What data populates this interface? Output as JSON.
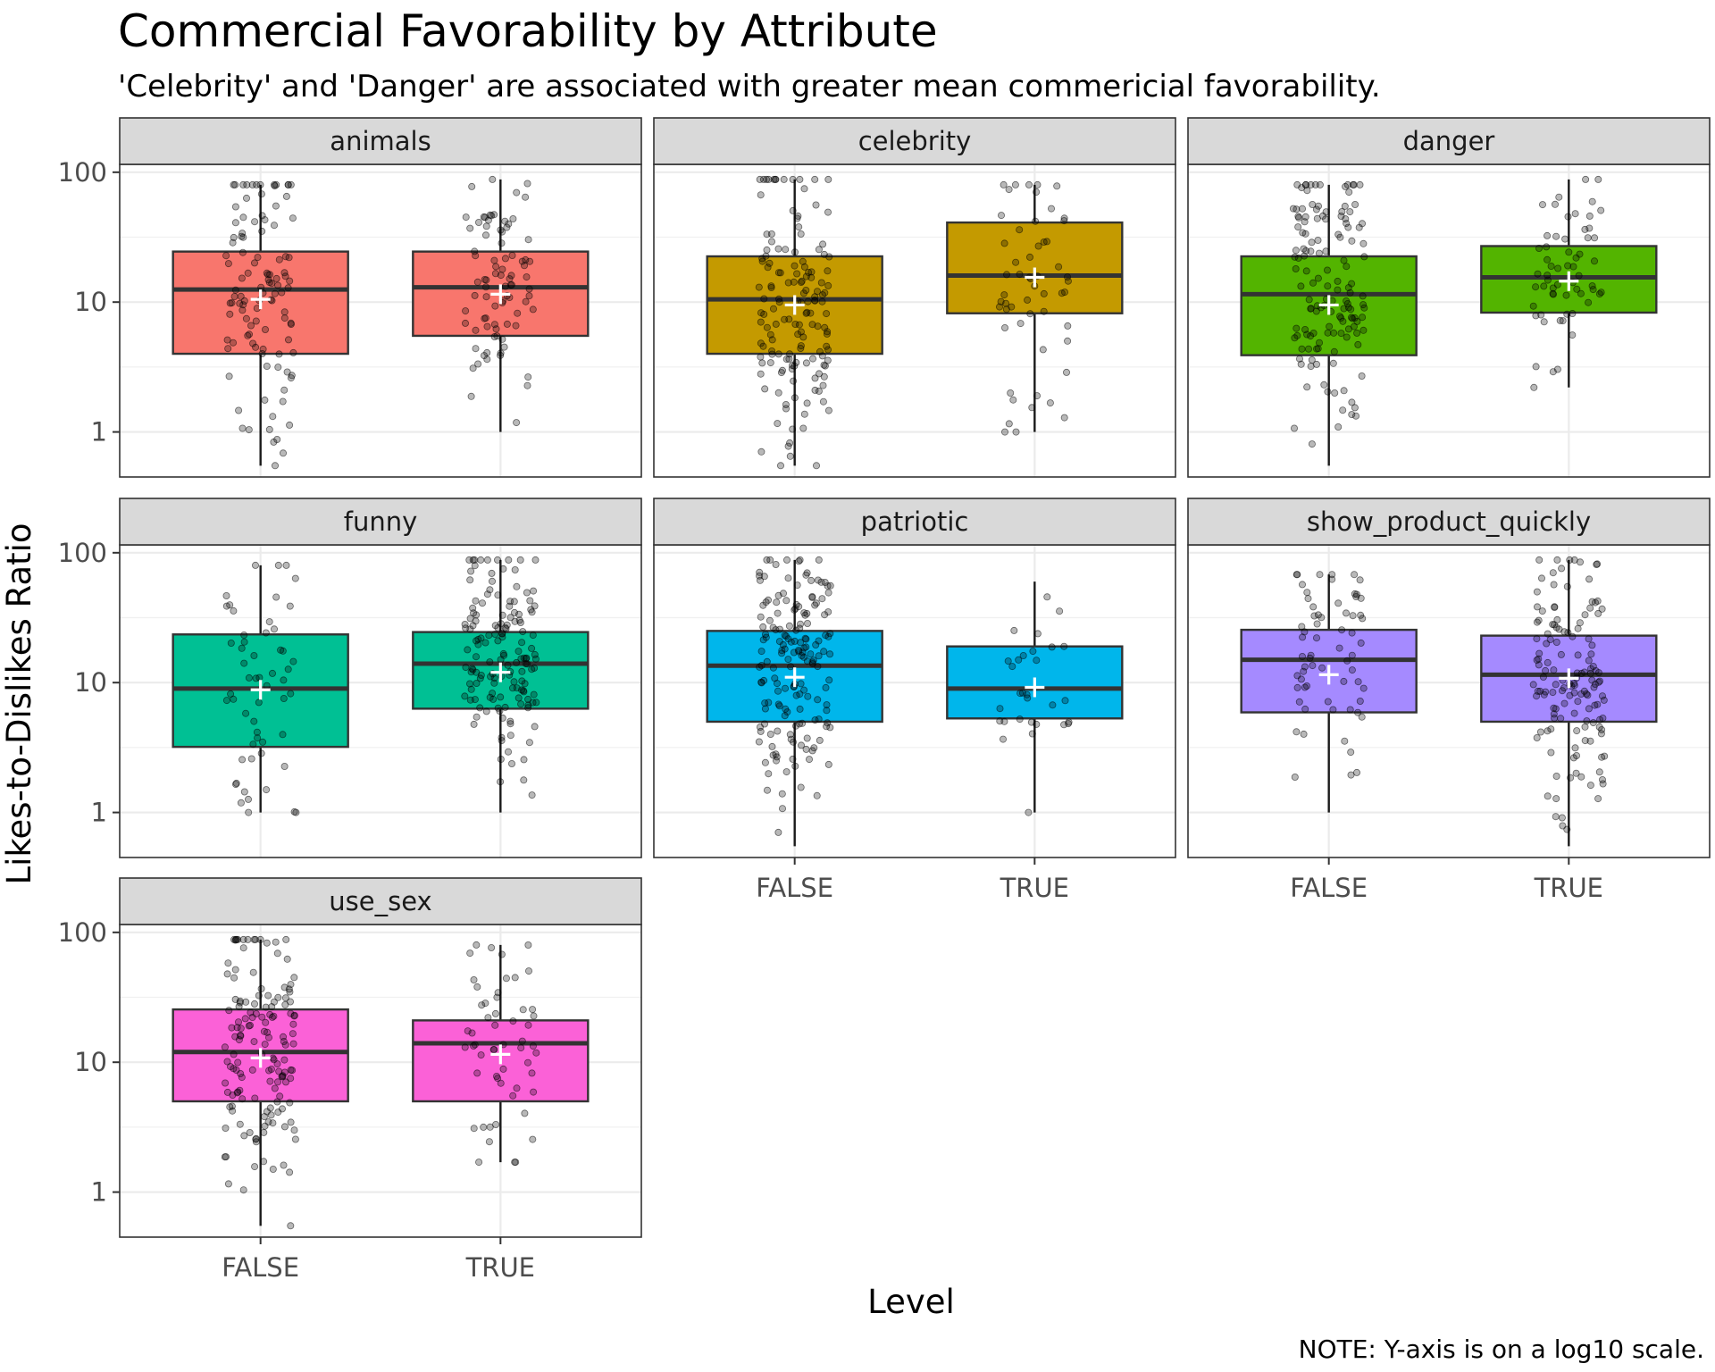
{
  "chart_data": {
    "type": "boxplot",
    "title": "Commercial Favorability by Attribute",
    "subtitle": "'Celebrity' and 'Danger' are associated with greater mean commericial favorability.",
    "xlabel": "Level",
    "ylabel": "Likes-to-Dislikes Ratio",
    "note": "NOTE: Y-axis is on a log10 scale.",
    "y_scale": "log10",
    "ylim": [
      0.45,
      115
    ],
    "y_ticks": [
      1,
      10,
      100
    ],
    "y_tick_labels": [
      "1",
      "10",
      "100"
    ],
    "categories": [
      "FALSE",
      "TRUE"
    ],
    "grid": true,
    "legend": "none",
    "facets": [
      {
        "name": "animals",
        "color": "#F8766D",
        "boxes": [
          {
            "level": "FALSE",
            "q1": 4.0,
            "median": 12.5,
            "q3": 24.5,
            "whisker_low": 0.55,
            "whisker_high": 80,
            "mean": 10.5,
            "n_points": 110
          },
          {
            "level": "TRUE",
            "q1": 5.5,
            "median": 13.0,
            "q3": 24.5,
            "whisker_low": 1.0,
            "whisker_high": 88,
            "mean": 11.5,
            "n_points": 85
          }
        ]
      },
      {
        "name": "celebrity",
        "color": "#C49A00",
        "boxes": [
          {
            "level": "FALSE",
            "q1": 4.0,
            "median": 10.5,
            "q3": 22.5,
            "whisker_low": 0.55,
            "whisker_high": 88,
            "mean": 9.5,
            "n_points": 150
          },
          {
            "level": "TRUE",
            "q1": 8.2,
            "median": 16.0,
            "q3": 41.0,
            "whisker_low": 1.0,
            "whisker_high": 80,
            "mean": 15.5,
            "n_points": 55
          }
        ]
      },
      {
        "name": "danger",
        "color": "#53B400",
        "boxes": [
          {
            "level": "FALSE",
            "q1": 3.9,
            "median": 11.5,
            "q3": 22.5,
            "whisker_low": 0.55,
            "whisker_high": 80,
            "mean": 9.5,
            "n_points": 140
          },
          {
            "level": "TRUE",
            "q1": 8.3,
            "median": 15.5,
            "q3": 27.0,
            "whisker_low": 2.2,
            "whisker_high": 88,
            "mean": 14.5,
            "n_points": 60
          }
        ]
      },
      {
        "name": "funny",
        "color": "#00C094",
        "boxes": [
          {
            "level": "FALSE",
            "q1": 3.2,
            "median": 9.0,
            "q3": 23.5,
            "whisker_low": 1.0,
            "whisker_high": 80,
            "mean": 8.8,
            "n_points": 55
          },
          {
            "level": "TRUE",
            "q1": 6.3,
            "median": 14.0,
            "q3": 24.5,
            "whisker_low": 1.0,
            "whisker_high": 88,
            "mean": 12.0,
            "n_points": 150
          }
        ]
      },
      {
        "name": "patriotic",
        "color": "#00B6EB",
        "boxes": [
          {
            "level": "FALSE",
            "q1": 5.0,
            "median": 13.5,
            "q3": 25.0,
            "whisker_low": 0.55,
            "whisker_high": 88,
            "mean": 11.0,
            "n_points": 170
          },
          {
            "level": "TRUE",
            "q1": 5.3,
            "median": 9.0,
            "q3": 19.0,
            "whisker_low": 1.0,
            "whisker_high": 60,
            "mean": 9.2,
            "n_points": 30
          }
        ]
      },
      {
        "name": "show_product_quickly",
        "color": "#A58AFF",
        "boxes": [
          {
            "level": "FALSE",
            "q1": 5.9,
            "median": 15.0,
            "q3": 25.5,
            "whisker_low": 1.0,
            "whisker_high": 68,
            "mean": 11.5,
            "n_points": 65
          },
          {
            "level": "TRUE",
            "q1": 5.0,
            "median": 11.5,
            "q3": 23.0,
            "whisker_low": 0.55,
            "whisker_high": 88,
            "mean": 10.8,
            "n_points": 140
          }
        ]
      },
      {
        "name": "use_sex",
        "color": "#FB61D7",
        "boxes": [
          {
            "level": "FALSE",
            "q1": 5.0,
            "median": 12.0,
            "q3": 25.5,
            "whisker_low": 0.55,
            "whisker_high": 88,
            "mean": 10.8,
            "n_points": 150
          },
          {
            "level": "TRUE",
            "q1": 5.0,
            "median": 14.0,
            "q3": 21.0,
            "whisker_low": 1.7,
            "whisker_high": 80,
            "mean": 11.5,
            "n_points": 55
          }
        ]
      }
    ]
  }
}
